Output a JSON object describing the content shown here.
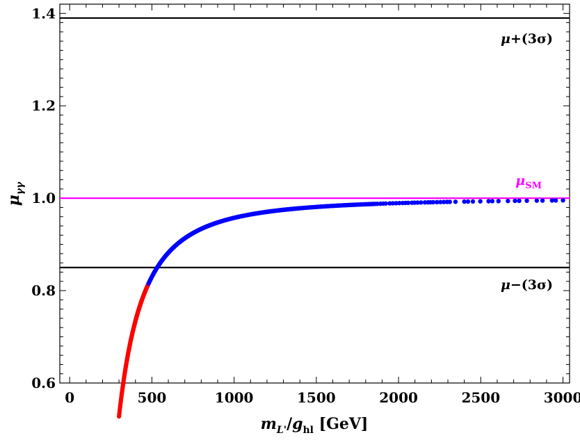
{
  "chart_data": {
    "type": "scatter",
    "title": "",
    "xlabel": {
      "main": "m",
      "sub_main": "L'",
      "sep": "/",
      "g": "g",
      "sub_g": "hl",
      "unit": " [GeV]"
    },
    "ylabel": {
      "main": "μ",
      "sub": "γγ"
    },
    "xlim": [
      -60,
      3040
    ],
    "ylim": [
      0.6,
      1.42
    ],
    "xticks": [
      0,
      500,
      1000,
      1500,
      2000,
      2500,
      3000
    ],
    "xtick_labels": [
      "0",
      "500",
      "1000",
      "1500",
      "2000",
      "2500",
      "3000"
    ],
    "yticks": [
      0.6,
      0.8,
      1.0,
      1.2,
      1.4
    ],
    "ytick_labels": [
      "0.6",
      "0.8",
      "1.0",
      "1.2",
      "1.4"
    ],
    "reference_lines": [
      {
        "name": "upper-3sigma",
        "y": 1.39,
        "color": "#000000",
        "label_main": "μ",
        "label_rest": "+(3σ)"
      },
      {
        "name": "sm",
        "y": 1.0,
        "color": "#ff00ff",
        "label_main": "μ",
        "label_sub": "SM"
      },
      {
        "name": "lower-3sigma",
        "y": 0.85,
        "color": "#000000",
        "label_main": "μ",
        "label_rest": "−(3σ)"
      }
    ],
    "curve_model": {
      "formula": "1 - 42500 / x^2",
      "x_min": 300,
      "x_max": 3000
    },
    "series": [
      {
        "name": "excluded",
        "color": "#ff0000",
        "x_range": [
          300,
          480
        ]
      },
      {
        "name": "allowed",
        "color": "#0000ff",
        "x_range": [
          480,
          3000
        ]
      }
    ]
  }
}
